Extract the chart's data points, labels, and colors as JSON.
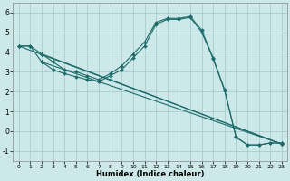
{
  "xlabel": "Humidex (Indice chaleur)",
  "background_color": "#cce8e8",
  "grid_color": "#aacccc",
  "line_color": "#1e6b6b",
  "xlim": [
    -0.5,
    23.5
  ],
  "ylim": [
    -1.5,
    6.5
  ],
  "xticks": [
    0,
    1,
    2,
    3,
    4,
    5,
    6,
    7,
    8,
    9,
    10,
    11,
    12,
    13,
    14,
    15,
    16,
    17,
    18,
    19,
    20,
    21,
    22,
    23
  ],
  "yticks": [
    -1,
    0,
    1,
    2,
    3,
    4,
    5,
    6
  ],
  "line1_x": [
    0,
    1,
    2,
    3,
    4,
    5,
    6,
    7,
    8,
    9,
    10,
    11,
    12,
    13,
    14,
    15,
    16,
    17,
    18,
    19,
    20,
    21,
    22,
    23
  ],
  "line1_y": [
    4.3,
    4.3,
    3.9,
    3.5,
    3.1,
    3.0,
    2.8,
    2.6,
    2.9,
    3.3,
    3.9,
    4.5,
    5.5,
    5.7,
    5.7,
    5.8,
    5.1,
    3.7,
    2.1,
    -0.3,
    -0.7,
    -0.7,
    -0.6,
    -0.6
  ],
  "line2_x": [
    0,
    1,
    2,
    3,
    4,
    5,
    6,
    7,
    8,
    9,
    10,
    11,
    12,
    13,
    14,
    15,
    16,
    17,
    18,
    19,
    20,
    21,
    22,
    23
  ],
  "line2_y": [
    4.3,
    4.3,
    3.5,
    3.1,
    2.9,
    2.75,
    2.6,
    2.5,
    2.8,
    3.1,
    3.7,
    4.3,
    5.4,
    5.65,
    5.65,
    5.75,
    5.0,
    3.65,
    2.05,
    -0.3,
    -0.7,
    -0.7,
    -0.6,
    -0.6
  ],
  "line3_x": [
    0,
    23
  ],
  "line3_y": [
    4.3,
    -0.65
  ],
  "line4_x": [
    2,
    8,
    23
  ],
  "line4_y": [
    3.9,
    2.6,
    -0.65
  ],
  "line5_x": [
    2,
    7,
    23
  ],
  "line5_y": [
    3.5,
    2.5,
    -0.65
  ],
  "marker_x1": [
    0,
    1,
    2,
    3,
    4,
    5,
    6,
    7,
    8,
    9,
    10,
    11,
    12,
    13,
    14,
    15,
    16,
    17,
    18,
    19,
    20,
    21,
    22,
    23
  ],
  "marker_x2": [
    2,
    3,
    4,
    5,
    6,
    7,
    8,
    9,
    10,
    19,
    20,
    21,
    22,
    23
  ]
}
